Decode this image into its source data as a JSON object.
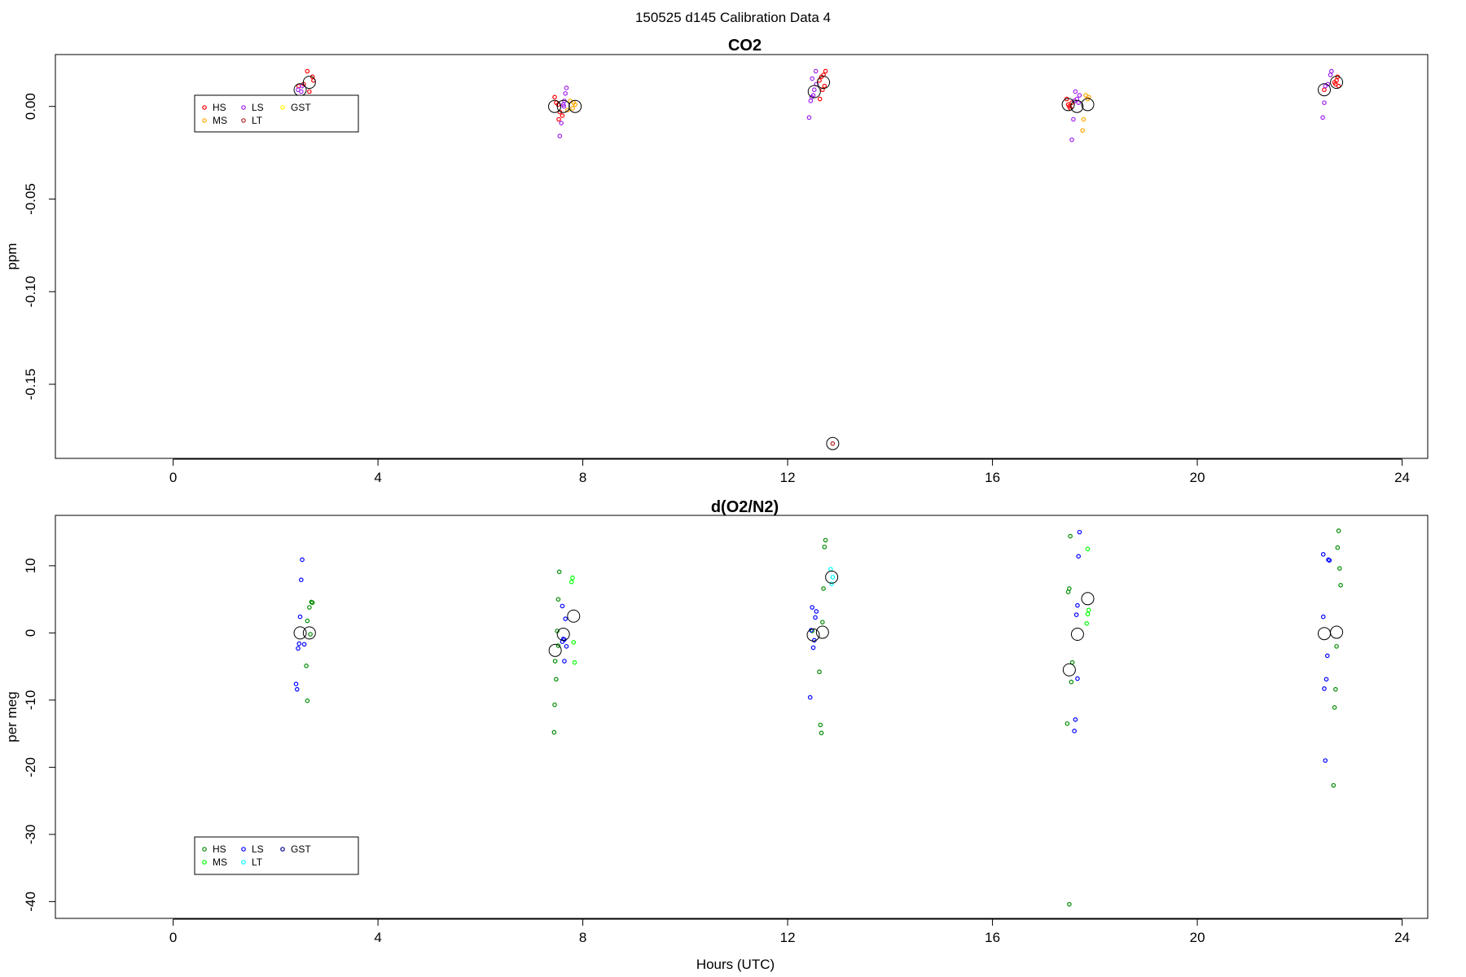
{
  "figure": {
    "title": "150525   d145   Calibration Data 4",
    "xlabel": "Hours (UTC)"
  },
  "chart_data": [
    {
      "type": "scatter",
      "title": "CO2",
      "ylabel": "ppm",
      "xlim": [
        -2.3,
        24.5
      ],
      "ylim": [
        -0.19,
        0.028
      ],
      "xticks": [
        0,
        4,
        8,
        12,
        16,
        20,
        24
      ],
      "yticks": [
        0.0,
        -0.05,
        -0.1,
        -0.15
      ],
      "ytick_labels": [
        "0.00",
        "-0.05",
        "-0.10",
        "-0.15"
      ],
      "legend": {
        "position": "top-left",
        "entries": [
          {
            "label": "HS",
            "color": "#ff0000"
          },
          {
            "label": "MS",
            "color": "#ffa500"
          },
          {
            "label": "LS",
            "color": "#a020f0"
          },
          {
            "label": "LT",
            "color": "#b22222"
          },
          {
            "label": "GST",
            "color": "#ffff00"
          }
        ]
      },
      "series": [
        {
          "name": "HS",
          "color": "#ff0000",
          "points": [
            [
              2.45,
              0.011
            ],
            [
              2.55,
              0.012
            ],
            [
              2.62,
              0.019
            ],
            [
              2.66,
              0.008
            ],
            [
              2.72,
              0.016
            ],
            [
              2.74,
              0.014
            ],
            [
              7.45,
              0.005
            ],
            [
              7.48,
              0.002
            ],
            [
              7.52,
              0.001
            ],
            [
              7.55,
              -0.003
            ],
            [
              7.6,
              -0.005
            ],
            [
              7.53,
              -0.007
            ],
            [
              12.62,
              0.014
            ],
            [
              12.66,
              0.016
            ],
            [
              12.7,
              0.017
            ],
            [
              12.72,
              0.011
            ],
            [
              12.74,
              0.019
            ],
            [
              12.63,
              0.004
            ],
            [
              12.68,
              0.009
            ],
            [
              17.45,
              0.004
            ],
            [
              17.48,
              0.001
            ],
            [
              17.52,
              -0.001
            ],
            [
              17.55,
              0.002
            ],
            [
              17.6,
              0.003
            ],
            [
              17.5,
              0.0
            ],
            [
              22.48,
              0.009
            ],
            [
              22.72,
              0.014
            ],
            [
              22.7,
              0.012
            ],
            [
              22.76,
              0.011
            ],
            [
              22.68,
              0.013
            ],
            [
              22.74,
              0.016
            ]
          ]
        },
        {
          "name": "MS",
          "color": "#ffa500",
          "points": [
            [
              7.75,
              0.003
            ],
            [
              7.8,
              -0.001
            ],
            [
              7.85,
              0.001
            ],
            [
              7.82,
              0.002
            ],
            [
              7.7,
              -0.002
            ],
            [
              17.78,
              -0.007
            ],
            [
              17.82,
              0.006
            ],
            [
              17.86,
              0.004
            ],
            [
              17.76,
              -0.013
            ],
            [
              17.88,
              0.005
            ]
          ]
        },
        {
          "name": "LS",
          "color": "#a020f0",
          "points": [
            [
              2.44,
              0.009
            ],
            [
              2.52,
              0.011
            ],
            [
              2.5,
              0.008
            ],
            [
              7.62,
              0.001
            ],
            [
              7.64,
              0.003
            ],
            [
              7.68,
              0.01
            ],
            [
              7.66,
              0.007
            ],
            [
              7.58,
              -0.009
            ],
            [
              7.63,
              0.0
            ],
            [
              7.55,
              -0.016
            ],
            [
              12.42,
              -0.006
            ],
            [
              12.45,
              0.003
            ],
            [
              12.47,
              0.005
            ],
            [
              12.5,
              0.006
            ],
            [
              12.52,
              0.009
            ],
            [
              12.55,
              0.019
            ],
            [
              12.48,
              0.015
            ],
            [
              12.56,
              0.012
            ],
            [
              17.55,
              -0.018
            ],
            [
              17.58,
              -0.007
            ],
            [
              17.6,
              0.003
            ],
            [
              17.62,
              0.008
            ],
            [
              17.65,
              0.004
            ],
            [
              17.68,
              0.002
            ],
            [
              17.7,
              0.006
            ],
            [
              22.45,
              -0.006
            ],
            [
              22.48,
              0.002
            ],
            [
              22.5,
              0.011
            ],
            [
              22.55,
              0.012
            ],
            [
              22.6,
              0.017
            ],
            [
              22.62,
              0.019
            ]
          ]
        },
        {
          "name": "LT",
          "color": "#b22222",
          "points": [
            [
              12.88,
              -0.182
            ]
          ]
        },
        {
          "name": "Mean",
          "color": "#000000",
          "marker": "large-circle",
          "points": [
            [
              2.48,
              0.009
            ],
            [
              2.66,
              0.013
            ],
            [
              7.45,
              0.0
            ],
            [
              7.62,
              0.0
            ],
            [
              7.85,
              0.0
            ],
            [
              12.52,
              0.008
            ],
            [
              12.7,
              0.013
            ],
            [
              12.88,
              -0.182
            ],
            [
              17.48,
              0.001
            ],
            [
              17.65,
              0.0
            ],
            [
              17.86,
              0.001
            ],
            [
              22.48,
              0.009
            ],
            [
              22.72,
              0.013
            ]
          ]
        }
      ]
    },
    {
      "type": "scatter",
      "title": "d(O2/N2)",
      "ylabel": "per meg",
      "xlim": [
        -2.3,
        24.5
      ],
      "ylim": [
        -42.5,
        17.5
      ],
      "xticks": [
        0,
        4,
        8,
        12,
        16,
        20,
        24
      ],
      "yticks": [
        10,
        0,
        -10,
        -20,
        -30,
        -40
      ],
      "ytick_labels": [
        "10",
        "0",
        "-10",
        "-20",
        "-30",
        "-40"
      ],
      "legend": {
        "position": "bottom-left",
        "entries": [
          {
            "label": "HS",
            "color": "#008b00"
          },
          {
            "label": "MS",
            "color": "#00ff00"
          },
          {
            "label": "LS",
            "color": "#0000ff"
          },
          {
            "label": "LT",
            "color": "#00ffff"
          },
          {
            "label": "GST",
            "color": "#00008b"
          }
        ]
      },
      "series": [
        {
          "name": "HS",
          "color": "#008b00",
          "points": [
            [
              2.62,
              1.8
            ],
            [
              2.66,
              3.8
            ],
            [
              2.7,
              4.6
            ],
            [
              2.72,
              4.5
            ],
            [
              2.6,
              -4.9
            ],
            [
              2.62,
              -10.1
            ],
            [
              2.68,
              -0.2
            ],
            [
              7.46,
              -4.2
            ],
            [
              7.48,
              -6.9
            ],
            [
              7.45,
              -10.7
            ],
            [
              7.44,
              -14.8
            ],
            [
              7.5,
              0.3
            ],
            [
              7.52,
              5.0
            ],
            [
              7.54,
              9.1
            ],
            [
              7.52,
              -1.9
            ],
            [
              12.48,
              0.3
            ],
            [
              12.62,
              -5.8
            ],
            [
              12.64,
              -13.7
            ],
            [
              12.66,
              -14.9
            ],
            [
              12.68,
              1.6
            ],
            [
              12.7,
              6.6
            ],
            [
              12.72,
              12.8
            ],
            [
              12.74,
              13.8
            ],
            [
              17.46,
              -13.5
            ],
            [
              17.48,
              6.1
            ],
            [
              17.5,
              6.6
            ],
            [
              17.52,
              14.4
            ],
            [
              17.54,
              -7.3
            ],
            [
              17.56,
              -4.4
            ],
            [
              17.5,
              -40.4
            ],
            [
              22.68,
              -11.1
            ],
            [
              22.7,
              -8.4
            ],
            [
              22.72,
              -2.0
            ],
            [
              22.74,
              12.7
            ],
            [
              22.76,
              15.2
            ],
            [
              22.78,
              9.6
            ],
            [
              22.8,
              7.1
            ],
            [
              22.66,
              -22.7
            ]
          ]
        },
        {
          "name": "MS",
          "color": "#00ff00",
          "points": [
            [
              7.78,
              7.6
            ],
            [
              7.8,
              8.2
            ],
            [
              7.82,
              -1.4
            ],
            [
              7.84,
              -4.4
            ],
            [
              17.84,
              1.4
            ],
            [
              17.86,
              2.8
            ],
            [
              17.88,
              3.4
            ],
            [
              17.86,
              12.5
            ]
          ]
        },
        {
          "name": "LS",
          "color": "#0000ff",
          "points": [
            [
              2.4,
              -7.6
            ],
            [
              2.42,
              -8.4
            ],
            [
              2.44,
              -2.3
            ],
            [
              2.46,
              -1.6
            ],
            [
              2.48,
              2.4
            ],
            [
              2.5,
              7.9
            ],
            [
              2.52,
              10.9
            ],
            [
              2.56,
              -1.7
            ],
            [
              7.6,
              -1.3
            ],
            [
              7.62,
              -0.9
            ],
            [
              7.64,
              -1.0
            ],
            [
              7.66,
              2.1
            ],
            [
              7.68,
              -2.0
            ],
            [
              7.64,
              -4.2
            ],
            [
              7.6,
              4.0
            ],
            [
              12.44,
              -9.6
            ],
            [
              12.46,
              0.4
            ],
            [
              12.48,
              3.8
            ],
            [
              12.5,
              -2.2
            ],
            [
              12.52,
              -1.1
            ],
            [
              12.54,
              2.3
            ],
            [
              12.56,
              3.2
            ],
            [
              17.6,
              -14.6
            ],
            [
              17.62,
              -12.9
            ],
            [
              17.64,
              2.7
            ],
            [
              17.66,
              4.1
            ],
            [
              17.68,
              11.4
            ],
            [
              17.7,
              15.0
            ],
            [
              17.66,
              -6.8
            ],
            [
              22.46,
              11.7
            ],
            [
              22.48,
              -8.3
            ],
            [
              22.5,
              -19.0
            ],
            [
              22.52,
              -6.9
            ],
            [
              22.54,
              -3.4
            ],
            [
              22.56,
              10.9
            ],
            [
              22.58,
              10.8
            ],
            [
              22.46,
              2.4
            ]
          ]
        },
        {
          "name": "LT",
          "color": "#00ffff",
          "points": [
            [
              12.84,
              9.5
            ],
            [
              12.86,
              7.3
            ],
            [
              12.88,
              8.3
            ]
          ]
        },
        {
          "name": "Mean",
          "color": "#000000",
          "marker": "large-circle",
          "points": [
            [
              2.48,
              0.0
            ],
            [
              2.66,
              0.0
            ],
            [
              7.46,
              -2.6
            ],
            [
              7.62,
              -0.2
            ],
            [
              7.82,
              2.5
            ],
            [
              12.5,
              -0.3
            ],
            [
              12.68,
              0.1
            ],
            [
              12.86,
              8.3
            ],
            [
              17.5,
              -5.5
            ],
            [
              17.66,
              -0.2
            ],
            [
              17.86,
              5.1
            ],
            [
              22.48,
              -0.1
            ],
            [
              22.72,
              0.1
            ]
          ]
        }
      ]
    }
  ]
}
